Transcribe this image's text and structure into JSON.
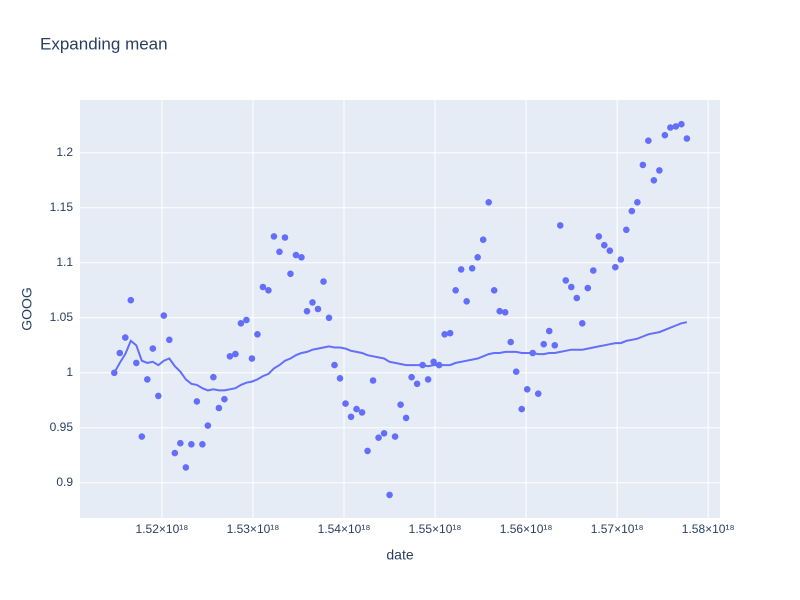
{
  "chart_data": {
    "type": "scatter",
    "title": "Expanding mean",
    "x_label": "date",
    "y_label": "GOOG",
    "xlim": [
      1.511e+18,
      1.5813e+18
    ],
    "xticks": [
      {
        "value": 1.52e+18,
        "label": "1.52×10¹⁸"
      },
      {
        "value": 1.53e+18,
        "label": "1.53×10¹⁸"
      },
      {
        "value": 1.54e+18,
        "label": "1.54×10¹⁸"
      },
      {
        "value": 1.55e+18,
        "label": "1.55×10¹⁸"
      },
      {
        "value": 1.56e+18,
        "label": "1.56×10¹⁸"
      },
      {
        "value": 1.57e+18,
        "label": "1.57×10¹⁸"
      },
      {
        "value": 1.58e+18,
        "label": "1.58×10¹⁸"
      }
    ],
    "ylim": [
      0.868,
      1.248
    ],
    "yticks": [
      0.9,
      0.95,
      1,
      1.05,
      1.1,
      1.15,
      1.2
    ],
    "grid": true,
    "background": "#e5ecf6",
    "x": [
      1.5147648e+18,
      1.5153696e+18,
      1.5159744e+18,
      1.5165792e+18,
      1.517184e+18,
      1.5177888e+18,
      1.5183936e+18,
      1.5189984e+18,
      1.5196032e+18,
      1.520208e+18,
      1.5208128e+18,
      1.5214176e+18,
      1.5220224e+18,
      1.5226272e+18,
      1.523232e+18,
      1.5238368e+18,
      1.5244416e+18,
      1.5250464e+18,
      1.5256512e+18,
      1.526256e+18,
      1.5268608e+18,
      1.5274656e+18,
      1.5280704e+18,
      1.5286752e+18,
      1.52928e+18,
      1.5298848e+18,
      1.5304896e+18,
      1.5310944e+18,
      1.5316992e+18,
      1.532304e+18,
      1.5329088e+18,
      1.5335136e+18,
      1.5341184e+18,
      1.5347232e+18,
      1.535328e+18,
      1.5359328e+18,
      1.5365376e+18,
      1.5371424e+18,
      1.5377472e+18,
      1.538352e+18,
      1.5389568e+18,
      1.5395616e+18,
      1.5401664e+18,
      1.5407712e+18,
      1.541376e+18,
      1.5419808e+18,
      1.5425856e+18,
      1.5431904e+18,
      1.5437952e+18,
      1.5444e+18,
      1.5450048e+18,
      1.5456096e+18,
      1.5462144e+18,
      1.5468192e+18,
      1.547424e+18,
      1.5480288e+18,
      1.5486336e+18,
      1.5492384e+18,
      1.5498432e+18,
      1.550448e+18,
      1.5510528e+18,
      1.5516576e+18,
      1.5522624e+18,
      1.5528672e+18,
      1.553472e+18,
      1.5540768e+18,
      1.5546816e+18,
      1.5552864e+18,
      1.5558912e+18,
      1.556496e+18,
      1.5571008e+18,
      1.5577056e+18,
      1.5583104e+18,
      1.5589152e+18,
      1.55952e+18,
      1.5601248e+18,
      1.5607296e+18,
      1.5613344e+18,
      1.5619392e+18,
      1.562544e+18,
      1.5631488e+18,
      1.5637536e+18,
      1.5643584e+18,
      1.5649632e+18,
      1.565568e+18,
      1.5661728e+18,
      1.5667776e+18,
      1.5673824e+18,
      1.5679872e+18,
      1.568592e+18,
      1.5691968e+18,
      1.5698016e+18,
      1.5704064e+18,
      1.5710112e+18,
      1.571616e+18,
      1.5722208e+18,
      1.5728256e+18,
      1.5734304e+18,
      1.5740352e+18,
      1.57464e+18,
      1.5752448e+18,
      1.5758496e+18,
      1.5764544e+18,
      1.5770592e+18,
      1.577664e+18
    ],
    "series": [
      {
        "type": "scatter",
        "color": "#636efa",
        "values": [
          1.0,
          1.018,
          1.032,
          1.066,
          1.009,
          0.942,
          0.994,
          1.022,
          0.979,
          1.052,
          1.03,
          0.927,
          0.936,
          0.914,
          0.935,
          0.974,
          0.935,
          0.952,
          0.996,
          0.968,
          0.976,
          1.015,
          1.017,
          1.045,
          1.048,
          1.013,
          1.035,
          1.078,
          1.075,
          1.124,
          1.11,
          1.123,
          1.09,
          1.107,
          1.105,
          1.056,
          1.064,
          1.058,
          1.083,
          1.05,
          1.007,
          0.995,
          0.972,
          0.96,
          0.967,
          0.964,
          0.929,
          0.993,
          0.941,
          0.945,
          0.889,
          0.942,
          0.971,
          0.959,
          0.996,
          0.99,
          1.007,
          0.994,
          1.01,
          1.007,
          1.035,
          1.036,
          1.075,
          1.094,
          1.065,
          1.095,
          1.105,
          1.121,
          1.155,
          1.075,
          1.056,
          1.055,
          1.028,
          1.001,
          0.967,
          0.985,
          1.018,
          0.981,
          1.026,
          1.038,
          1.025,
          1.134,
          1.084,
          1.078,
          1.068,
          1.045,
          1.077,
          1.093,
          1.124,
          1.116,
          1.111,
          1.096,
          1.103,
          1.13,
          1.147,
          1.155,
          1.189,
          1.211,
          1.175,
          1.184,
          1.216,
          1.223,
          1.224,
          1.226,
          1.213
        ]
      },
      {
        "type": "line",
        "color": "#636efa",
        "values": [
          1.0,
          1.009,
          1.017,
          1.029,
          1.025,
          1.011,
          1.009,
          1.01,
          1.007,
          1.011,
          1.013,
          1.006,
          1.001,
          0.994,
          0.99,
          0.989,
          0.986,
          0.984,
          0.985,
          0.984,
          0.984,
          0.985,
          0.986,
          0.989,
          0.991,
          0.992,
          0.994,
          0.997,
          0.999,
          1.004,
          1.007,
          1.011,
          1.013,
          1.016,
          1.018,
          1.019,
          1.021,
          1.022,
          1.023,
          1.024,
          1.023,
          1.023,
          1.022,
          1.02,
          1.019,
          1.018,
          1.016,
          1.015,
          1.014,
          1.013,
          1.01,
          1.009,
          1.008,
          1.007,
          1.007,
          1.007,
          1.007,
          1.006,
          1.007,
          1.007,
          1.007,
          1.007,
          1.009,
          1.01,
          1.011,
          1.012,
          1.013,
          1.015,
          1.017,
          1.018,
          1.018,
          1.019,
          1.019,
          1.019,
          1.018,
          1.018,
          1.018,
          1.017,
          1.017,
          1.018,
          1.018,
          1.019,
          1.02,
          1.021,
          1.021,
          1.021,
          1.022,
          1.023,
          1.024,
          1.025,
          1.026,
          1.027,
          1.027,
          1.029,
          1.03,
          1.031,
          1.033,
          1.035,
          1.036,
          1.037,
          1.039,
          1.041,
          1.043,
          1.045,
          1.046
        ]
      }
    ]
  }
}
